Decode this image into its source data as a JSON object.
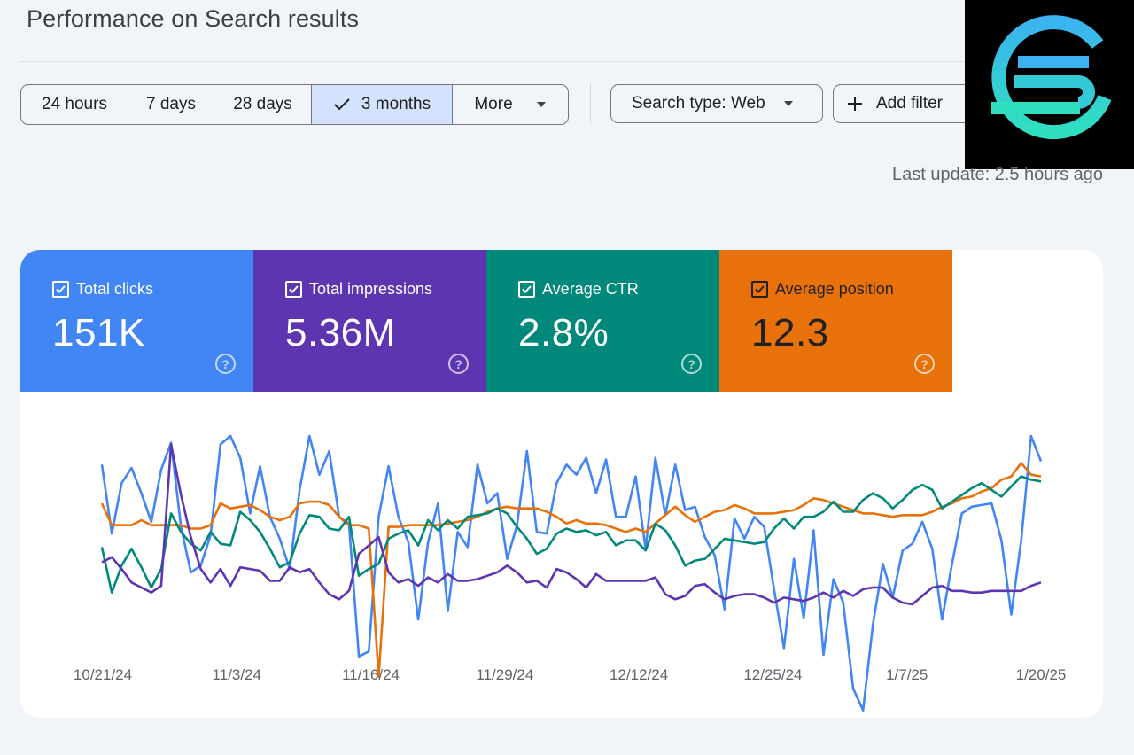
{
  "header": {
    "title": "Performance on Search results"
  },
  "date_range": {
    "options": [
      {
        "label": "24 hours",
        "selected": false
      },
      {
        "label": "7 days",
        "selected": false
      },
      {
        "label": "28 days",
        "selected": false
      },
      {
        "label": "3 months",
        "selected": true
      },
      {
        "label": "More",
        "selected": false
      }
    ]
  },
  "filters": {
    "search_type": "Search type: Web",
    "add_filter": "Add filter"
  },
  "last_update": "Last update: 2.5 hours ago",
  "metrics": [
    {
      "label": "Total clicks",
      "value": "151K",
      "color": "#4285f4",
      "checked": true
    },
    {
      "label": "Total impressions",
      "value": "5.36M",
      "color": "#5e35b1",
      "checked": true
    },
    {
      "label": "Average CTR",
      "value": "2.8%",
      "color": "#00897b",
      "checked": true
    },
    {
      "label": "Average position",
      "value": "12.3",
      "color": "#e8710a",
      "checked": true
    }
  ],
  "icons": {
    "check": "check-icon",
    "caret": "caret-down-icon",
    "plus": "plus-icon",
    "help": "help-circle-icon",
    "logo": "brand-logo-icon"
  },
  "chart_data": {
    "type": "line",
    "x_start": "10/21/24",
    "x_end": "1/20/25",
    "x_tick_labels": [
      "10/21/24",
      "11/3/24",
      "11/16/24",
      "11/29/24",
      "12/12/24",
      "12/25/24",
      "1/7/25",
      "1/20/25"
    ],
    "series": [
      {
        "metric": "Total clicks",
        "color": "#4285f4",
        "values": [
          0.83,
          0.42,
          0.72,
          0.81,
          0.66,
          0.49,
          0.8,
          0.96,
          0.46,
          0.19,
          0.23,
          0.41,
          0.95,
          1.0,
          0.87,
          0.54,
          0.82,
          0.52,
          0.39,
          0.21,
          0.68,
          1.0,
          0.77,
          0.91,
          0.52,
          0.48,
          -0.31,
          -0.28,
          0.52,
          0.82,
          0.52,
          0.37,
          -0.09,
          0.37,
          0.6,
          -0.04,
          0.43,
          0.34,
          0.83,
          0.6,
          0.66,
          0.27,
          0.47,
          0.91,
          0.43,
          0.42,
          0.72,
          0.83,
          0.77,
          0.87,
          0.66,
          0.86,
          0.52,
          0.52,
          0.76,
          0.33,
          0.87,
          0.53,
          0.83,
          0.56,
          0.58,
          0.4,
          0.29,
          -0.03,
          0.51,
          0.39,
          0.52,
          0.46,
          0.09,
          -0.26,
          0.27,
          -0.08,
          0.44,
          -0.3,
          0.15,
          0.01,
          -0.5,
          -0.63,
          -0.12,
          0.24,
          0.04,
          0.32,
          0.36,
          0.49,
          0.33,
          -0.09,
          0.24,
          0.54,
          0.58,
          0.59,
          0.6,
          0.38,
          -0.06,
          0.38,
          1.0,
          0.85
        ]
      },
      {
        "metric": "Average position",
        "color": "#e8710a",
        "values": [
          0.6,
          0.47,
          0.47,
          0.47,
          0.5,
          0.47,
          0.47,
          0.47,
          0.47,
          0.45,
          0.45,
          0.47,
          0.6,
          0.57,
          0.58,
          0.59,
          0.56,
          0.52,
          0.5,
          0.52,
          0.6,
          0.61,
          0.61,
          0.59,
          0.52,
          0.47,
          0.47,
          0.45,
          -0.43,
          0.46,
          0.46,
          0.47,
          0.47,
          0.47,
          0.47,
          0.48,
          0.49,
          0.5,
          0.52,
          0.55,
          0.57,
          0.58,
          0.57,
          0.57,
          0.57,
          0.55,
          0.52,
          0.48,
          0.5,
          0.48,
          0.48,
          0.47,
          0.45,
          0.43,
          0.45,
          0.43,
          0.48,
          0.53,
          0.58,
          0.53,
          0.49,
          0.52,
          0.55,
          0.56,
          0.59,
          0.57,
          0.54,
          0.54,
          0.54,
          0.55,
          0.56,
          0.59,
          0.63,
          0.62,
          0.6,
          0.58,
          0.56,
          0.54,
          0.54,
          0.53,
          0.52,
          0.53,
          0.53,
          0.53,
          0.55,
          0.58,
          0.6,
          0.63,
          0.64,
          0.67,
          0.69,
          0.74,
          0.76,
          0.84,
          0.77,
          0.76
        ]
      },
      {
        "metric": "Average CTR",
        "color": "#00897b",
        "values": [
          0.34,
          0.07,
          0.23,
          0.33,
          0.22,
          0.1,
          0.21,
          0.54,
          0.43,
          0.36,
          0.32,
          0.43,
          0.36,
          0.35,
          0.55,
          0.5,
          0.43,
          0.33,
          0.22,
          0.25,
          0.42,
          0.53,
          0.52,
          0.45,
          0.44,
          0.52,
          0.17,
          0.21,
          0.24,
          0.39,
          0.42,
          0.44,
          0.35,
          0.5,
          0.44,
          0.5,
          0.45,
          0.52,
          0.53,
          0.54,
          0.57,
          0.54,
          0.46,
          0.39,
          0.3,
          0.33,
          0.42,
          0.45,
          0.43,
          0.44,
          0.41,
          0.43,
          0.35,
          0.38,
          0.38,
          0.32,
          0.48,
          0.44,
          0.35,
          0.23,
          0.26,
          0.27,
          0.33,
          0.39,
          0.38,
          0.37,
          0.36,
          0.37,
          0.45,
          0.51,
          0.45,
          0.52,
          0.52,
          0.55,
          0.61,
          0.55,
          0.55,
          0.62,
          0.66,
          0.63,
          0.57,
          0.62,
          0.68,
          0.71,
          0.68,
          0.57,
          0.61,
          0.65,
          0.69,
          0.72,
          0.68,
          0.64,
          0.7,
          0.76,
          0.74,
          0.73
        ]
      },
      {
        "metric": "Total impressions",
        "color": "#5e35b1",
        "values": [
          0.25,
          0.28,
          0.21,
          0.13,
          0.1,
          0.07,
          0.11,
          0.95,
          0.65,
          0.4,
          0.21,
          0.13,
          0.21,
          0.11,
          0.22,
          0.21,
          0.2,
          0.14,
          0.14,
          0.22,
          0.19,
          0.21,
          0.13,
          0.06,
          0.03,
          0.08,
          0.3,
          0.35,
          0.4,
          0.19,
          0.13,
          0.15,
          0.11,
          0.16,
          0.13,
          0.18,
          0.14,
          0.14,
          0.15,
          0.17,
          0.19,
          0.23,
          0.19,
          0.13,
          0.14,
          0.1,
          0.21,
          0.19,
          0.15,
          0.1,
          0.18,
          0.14,
          0.14,
          0.14,
          0.14,
          0.14,
          0.16,
          0.06,
          0.03,
          0.05,
          0.11,
          0.12,
          0.07,
          0.03,
          0.05,
          0.06,
          0.06,
          0.04,
          0.01,
          0.04,
          0.03,
          0.02,
          0.04,
          0.07,
          0.04,
          0.08,
          0.05,
          0.09,
          0.1,
          0.1,
          0.04,
          0.01,
          0.0,
          0.05,
          0.1,
          0.11,
          0.08,
          0.08,
          0.07,
          0.07,
          0.08,
          0.08,
          0.08,
          0.08,
          0.11,
          0.13
        ]
      }
    ]
  }
}
